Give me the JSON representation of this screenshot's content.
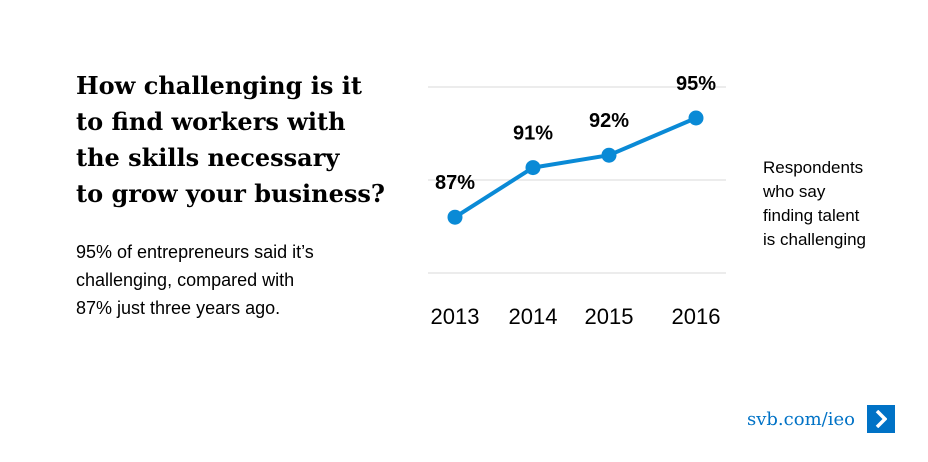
{
  "headline_lines": [
    "How challenging is it",
    "to find workers with",
    "the skills necessary",
    "to grow your business?"
  ],
  "subtext_lines": [
    "95% of entrepreneurs said it’s",
    "challenging, compared with",
    "87% just three years ago."
  ],
  "side_note_lines": [
    "Respondents",
    "who say",
    "finding talent",
    "is challenging"
  ],
  "footer": {
    "link_text": "svb.com/ieo",
    "icon": "chevron-right-icon"
  },
  "colors": {
    "series": "#0a8ad6",
    "grid": "#d9d9d9",
    "link": "#0072c6"
  },
  "chart_data": {
    "type": "line",
    "x": [
      "2013",
      "2014",
      "2015",
      "2016"
    ],
    "series": [
      {
        "values": [
          87,
          91,
          92,
          95
        ],
        "labels": [
          "87%",
          "91%",
          "92%",
          "95%"
        ]
      }
    ],
    "title": "",
    "xlabel": "",
    "ylabel": "",
    "ylim": [
      82.5,
      97.5
    ],
    "grid": true,
    "gridlines": [
      82.5,
      90,
      97.5
    ]
  }
}
